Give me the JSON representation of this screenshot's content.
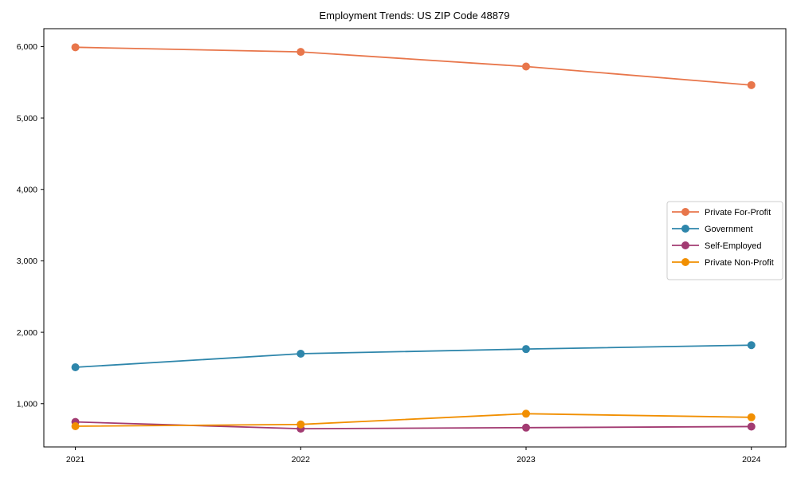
{
  "page": {
    "background": "#ffffff"
  },
  "chart_data": {
    "type": "line",
    "title": "Employment Trends: US ZIP Code 48879",
    "x": [
      2021,
      2022,
      2023,
      2024
    ],
    "x_tick_labels": [
      "2021",
      "2022",
      "2023",
      "2024"
    ],
    "series": [
      {
        "name": "Private For-Profit",
        "color": "#E8764B",
        "values": [
          5990,
          5925,
          5720,
          5460
        ]
      },
      {
        "name": "Government",
        "color": "#2E86AB",
        "values": [
          1510,
          1700,
          1765,
          1820
        ]
      },
      {
        "name": "Self-Employed",
        "color": "#A23B72",
        "values": [
          745,
          650,
          665,
          680
        ]
      },
      {
        "name": "Private Non-Profit",
        "color": "#F18F01",
        "values": [
          685,
          710,
          860,
          810
        ]
      }
    ],
    "y_ticks": [
      1000,
      2000,
      3000,
      4000,
      5000,
      6000
    ],
    "y_tick_labels": [
      "1,000",
      "2,000",
      "3,000",
      "4,000",
      "5,000",
      "6,000"
    ],
    "xlim": [
      2020.86,
      2024.153
    ],
    "ylim": [
      395,
      6250
    ],
    "grid": false,
    "legend": {
      "position": "center-right",
      "entries": [
        "Private For-Profit",
        "Government",
        "Self-Employed",
        "Private Non-Profit"
      ],
      "border_color": "#cccccc",
      "background": "#ffffff"
    },
    "axis_color": "#000000",
    "text_color": "#000000",
    "marker": "circle",
    "marker_radius": 5,
    "line_width": 1.8
  }
}
